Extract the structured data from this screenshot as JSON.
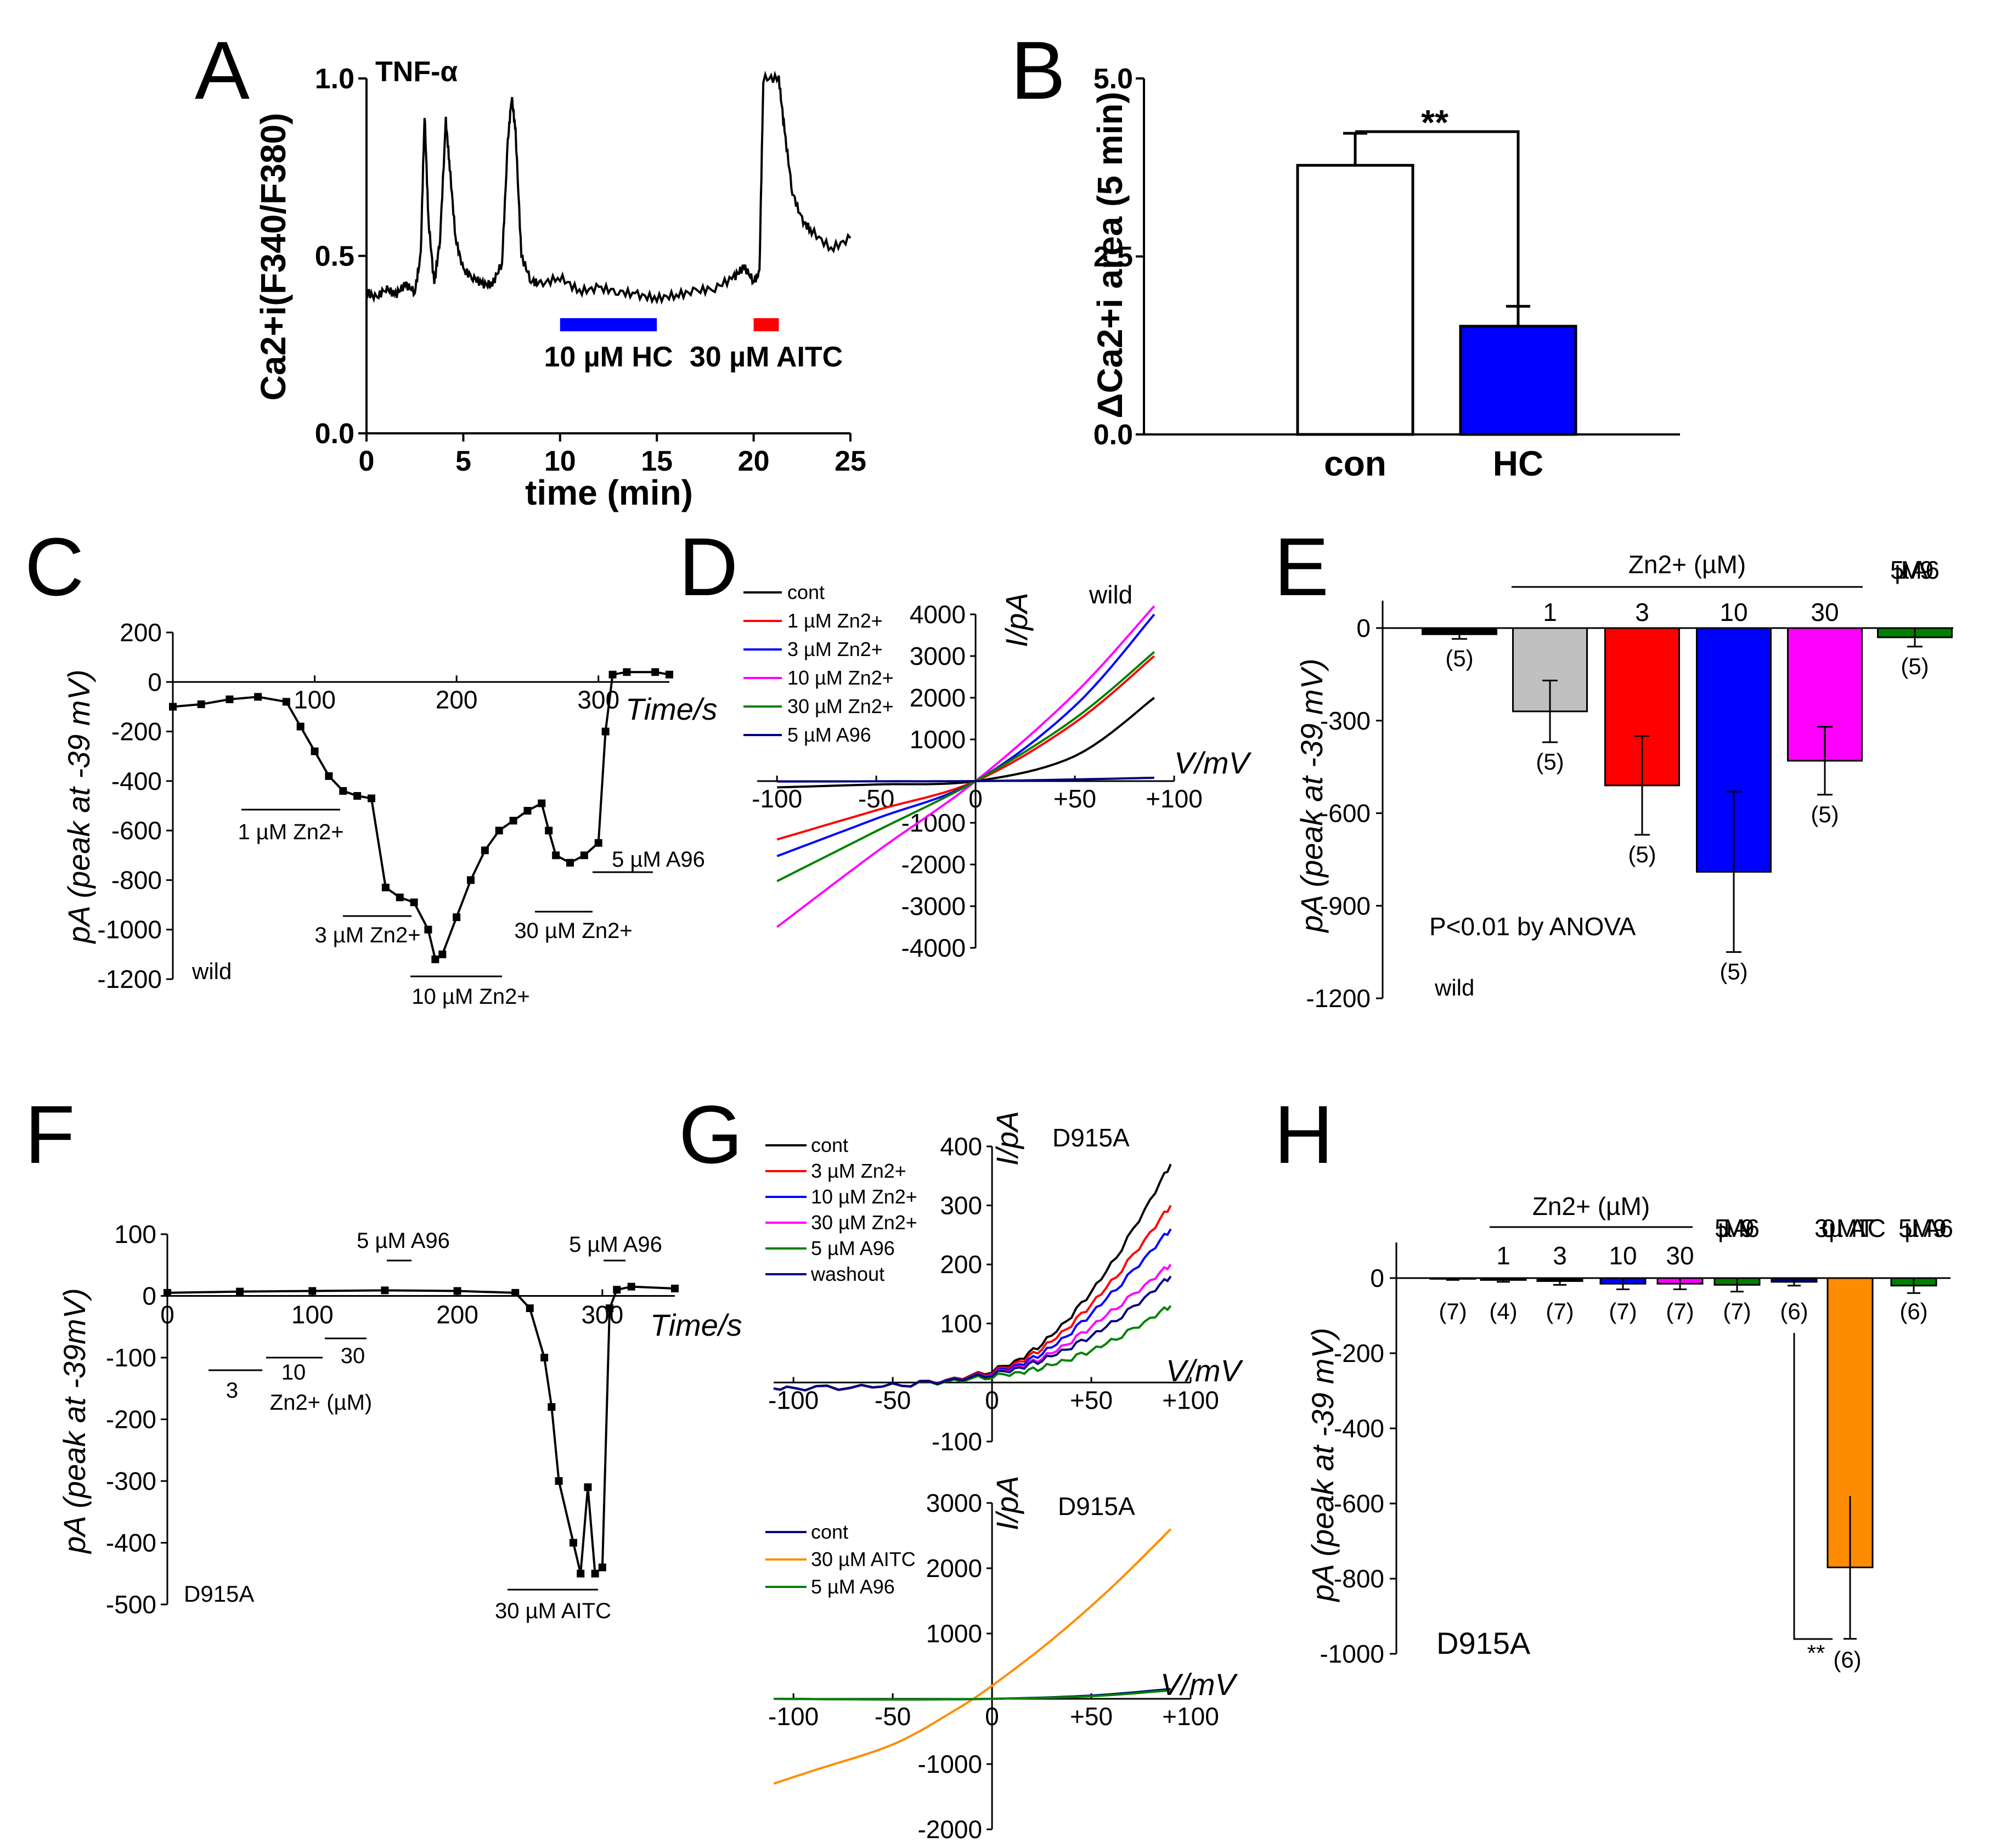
{
  "chart_data": [
    {
      "panel": "A",
      "type": "line",
      "annotation_top": "TNF-α",
      "xlabel": "time (min)",
      "ylabel": "Ca2+i(F340/F380)",
      "ylim": [
        0.0,
        1.0
      ],
      "xlim": [
        0,
        25
      ],
      "x_ticks": [
        "0",
        "5",
        "10",
        "15",
        "20",
        "25"
      ],
      "y_ticks": [
        "0.0",
        "0.5",
        "1.0"
      ],
      "series": [
        {
          "x": [
            0,
            0.5,
            1,
            1.5,
            2,
            2.5,
            2.8,
            3.0,
            3.2,
            3.5,
            3.8,
            4.1,
            4.3,
            4.6,
            5,
            5.5,
            6,
            6.5,
            7,
            7.3,
            7.5,
            7.7,
            8,
            8.5,
            9,
            10,
            11,
            12,
            13,
            14,
            15,
            16,
            17,
            18,
            19,
            19.5,
            20,
            20.3,
            20.5,
            21.3,
            21.6,
            22,
            22.5,
            23,
            24,
            25
          ],
          "y": [
            0.4,
            0.38,
            0.41,
            0.39,
            0.42,
            0.4,
            0.5,
            0.9,
            0.6,
            0.42,
            0.55,
            0.88,
            0.75,
            0.55,
            0.46,
            0.44,
            0.42,
            0.42,
            0.48,
            0.82,
            0.95,
            0.85,
            0.5,
            0.43,
            0.42,
            0.44,
            0.4,
            0.41,
            0.4,
            0.39,
            0.38,
            0.39,
            0.4,
            0.41,
            0.44,
            0.47,
            0.43,
            0.45,
            1.0,
            1.0,
            0.85,
            0.68,
            0.6,
            0.57,
            0.52,
            0.55
          ]
        }
      ],
      "bars": [
        {
          "label": "10 µM HC",
          "start": 10,
          "end": 15,
          "color": "#0000ff"
        },
        {
          "label": "30 µM AITC",
          "start": 20,
          "end": 21.3,
          "color": "#ff0000"
        }
      ]
    },
    {
      "panel": "B",
      "type": "bar",
      "categories": [
        "con",
        "HC"
      ],
      "values": [
        3.78,
        1.52
      ],
      "errors": [
        0.45,
        0.28
      ],
      "colors": [
        "#ffffff",
        "#0000ff"
      ],
      "ylabel": "ΔCa2+i area (5 min)",
      "ylim": [
        0.0,
        5.0
      ],
      "y_ticks": [
        "0.0",
        "2.5",
        "5.0"
      ],
      "significance": "**"
    },
    {
      "panel": "C",
      "type": "line",
      "xlabel": "Time/s",
      "ylabel": "pA (peak at -39 mV)",
      "xlim": [
        0,
        350
      ],
      "ylim": [
        -1200,
        200
      ],
      "x_ticks": [
        "100",
        "200",
        "300"
      ],
      "y_ticks": [
        "200",
        "0",
        "-200",
        "-400",
        "-600",
        "-800",
        "-1000",
        "-1200"
      ],
      "series": [
        {
          "x": [
            0,
            20,
            40,
            60,
            80,
            90,
            100,
            110,
            120,
            130,
            140,
            150,
            160,
            170,
            180,
            185,
            190,
            200,
            210,
            220,
            230,
            240,
            250,
            260,
            265,
            270,
            280,
            290,
            300,
            305,
            310,
            320,
            340,
            350
          ],
          "y": [
            -100,
            -90,
            -70,
            -60,
            -80,
            -180,
            -280,
            -380,
            -440,
            -460,
            -470,
            -830,
            -870,
            -890,
            -1000,
            -1120,
            -1100,
            -950,
            -800,
            -680,
            -600,
            -560,
            -520,
            -490,
            -600,
            -700,
            -730,
            -700,
            -650,
            -200,
            30,
            40,
            40,
            30
          ]
        }
      ],
      "annotations": [
        "1 µM Zn2+",
        "3 µM Zn2+",
        "10 µM Zn2+",
        "30 µM Zn2+",
        "5 µM A96",
        "wild"
      ]
    },
    {
      "panel": "D",
      "type": "line",
      "annotation": "wild",
      "xlabel": "V/mV",
      "ylabel": "I/pA",
      "xlim": [
        -110,
        100
      ],
      "ylim": [
        -4000,
        4000
      ],
      "x_ticks": [
        "-100",
        "-50",
        "0",
        "+50",
        "+100"
      ],
      "y_ticks": [
        "4000",
        "3000",
        "2000",
        "1000",
        "-1000",
        "-2000",
        "-3000",
        "-4000"
      ],
      "series": [
        {
          "name": "cont",
          "color": "#000000",
          "x": [
            -100,
            -50,
            0,
            50,
            90
          ],
          "y": [
            -150,
            -80,
            0,
            600,
            2000
          ]
        },
        {
          "name": "1 µM Zn2+",
          "color": "#ff0000",
          "x": [
            -100,
            -50,
            0,
            50,
            90
          ],
          "y": [
            -1400,
            -700,
            0,
            1400,
            3000
          ]
        },
        {
          "name": "3 µM Zn2+",
          "color": "#0000ff",
          "x": [
            -100,
            -50,
            0,
            50,
            90
          ],
          "y": [
            -1800,
            -900,
            0,
            1800,
            4000
          ]
        },
        {
          "name": "10 µM Zn2+",
          "color": "#ff00ff",
          "x": [
            -100,
            -50,
            0,
            50,
            90
          ],
          "y": [
            -3500,
            -1700,
            0,
            2100,
            4200
          ]
        },
        {
          "name": "30 µM Zn2+",
          "color": "#008000",
          "x": [
            -100,
            -50,
            0,
            50,
            90
          ],
          "y": [
            -2400,
            -1200,
            0,
            1500,
            3100
          ]
        },
        {
          "name": "5 µM A96",
          "color": "#000080",
          "x": [
            -100,
            -50,
            0,
            50,
            90
          ],
          "y": [
            -10,
            -5,
            0,
            40,
            80
          ]
        }
      ]
    },
    {
      "panel": "E",
      "type": "bar",
      "ylabel": "pA (peak at -39 mV)",
      "ylim": [
        -1200,
        0
      ],
      "y_ticks": [
        "0",
        "-300",
        "-600",
        "-900",
        "-1200"
      ],
      "group_label": "Zn2+ (µM)",
      "categories": [
        "",
        "1",
        "3",
        "10",
        "30",
        "5 µM A96"
      ],
      "values": [
        -20,
        -270,
        -510,
        -790,
        -430,
        -30
      ],
      "errors": [
        15,
        100,
        160,
        260,
        110,
        30
      ],
      "n": [
        "(5)",
        "(5)",
        "(5)",
        "(5)",
        "(5)",
        "(5)"
      ],
      "colors": [
        "#000000",
        "#c0c0c0",
        "#ff0000",
        "#0000ff",
        "#ff00ff",
        "#008000"
      ],
      "annotations": [
        "P<0.01 by ANOVA",
        "wild"
      ]
    },
    {
      "panel": "F",
      "type": "line",
      "xlabel": "Time/s",
      "ylabel": "pA (peak at -39mV)",
      "xlim": [
        0,
        350
      ],
      "ylim": [
        -500,
        100
      ],
      "x_ticks": [
        "0",
        "100",
        "200",
        "300"
      ],
      "y_ticks": [
        "100",
        "0",
        "-100",
        "-200",
        "-300",
        "-400",
        "-500"
      ],
      "series": [
        {
          "x": [
            0,
            50,
            100,
            150,
            200,
            240,
            250,
            260,
            265,
            270,
            280,
            285,
            290,
            295,
            300,
            305,
            310,
            320,
            350
          ],
          "y": [
            5,
            7,
            8,
            9,
            8,
            5,
            -20,
            -100,
            -180,
            -300,
            -400,
            -450,
            -310,
            -450,
            -440,
            -20,
            10,
            15,
            12
          ]
        }
      ],
      "annotations": [
        "5 µM A96",
        "5 µM A96",
        "3",
        "10",
        "30",
        "Zn2+ (µM)",
        "30 µM AITC",
        "D915A"
      ]
    },
    {
      "panel": "G",
      "type": "line",
      "annotation": "D915A",
      "xlabel": "V/mV",
      "ylabel": "I/pA",
      "xlim": [
        -110,
        100
      ],
      "ylim": [
        -100,
        400
      ],
      "x_ticks": [
        "-100",
        "-50",
        "0",
        "+50",
        "+100"
      ],
      "y_ticks": [
        "400",
        "300",
        "200",
        "100",
        "-100"
      ],
      "series": [
        {
          "name": "cont",
          "color": "#000000",
          "x": [
            -110,
            -50,
            0,
            30,
            60,
            90
          ],
          "y": [
            -10,
            -5,
            20,
            80,
            200,
            370
          ]
        },
        {
          "name": "3 µM Zn2+",
          "color": "#ff0000",
          "x": [
            -110,
            -50,
            0,
            30,
            60,
            90
          ],
          "y": [
            -10,
            -5,
            18,
            70,
            170,
            300
          ]
        },
        {
          "name": "10 µM Zn2+",
          "color": "#0000ff",
          "x": [
            -110,
            -50,
            0,
            30,
            60,
            90
          ],
          "y": [
            -10,
            -5,
            16,
            60,
            150,
            260
          ]
        },
        {
          "name": "30 µM Zn2+",
          "color": "#ff00ff",
          "x": [
            -110,
            -50,
            0,
            30,
            60,
            90
          ],
          "y": [
            -10,
            -5,
            15,
            50,
            120,
            200
          ]
        },
        {
          "name": "5 µM A96",
          "color": "#008000",
          "x": [
            -110,
            -50,
            0,
            30,
            60,
            90
          ],
          "y": [
            -10,
            -5,
            10,
            30,
            70,
            130
          ]
        },
        {
          "name": "washout",
          "color": "#000080",
          "x": [
            -110,
            -50,
            0,
            30,
            60,
            90
          ],
          "y": [
            -10,
            -5,
            14,
            45,
            100,
            180
          ]
        }
      ]
    },
    {
      "panel": "G-lower",
      "type": "line",
      "annotation": "D915A",
      "xlabel": "V/mV",
      "ylabel": "I/pA",
      "xlim": [
        -110,
        100
      ],
      "ylim": [
        -2000,
        3000
      ],
      "x_ticks": [
        "-100",
        "-50",
        "0",
        "+50",
        "+100"
      ],
      "y_ticks": [
        "3000",
        "2000",
        "1000",
        "-1000",
        "-2000"
      ],
      "series": [
        {
          "name": "cont",
          "color": "#000080",
          "x": [
            -110,
            -50,
            0,
            50,
            90
          ],
          "y": [
            0,
            -10,
            0,
            50,
            150
          ]
        },
        {
          "name": "30 µM AITC",
          "color": "#ff8c00",
          "x": [
            -110,
            -90,
            -50,
            -20,
            0,
            30,
            60,
            90
          ],
          "y": [
            -1300,
            -1100,
            -700,
            -200,
            200,
            900,
            1700,
            2600
          ]
        },
        {
          "name": "5 µM A96",
          "color": "#008000",
          "x": [
            -110,
            -50,
            0,
            50,
            90
          ],
          "y": [
            0,
            -10,
            0,
            40,
            130
          ]
        }
      ]
    },
    {
      "panel": "H",
      "type": "bar",
      "ylabel": "pA (peak at -39 mV)",
      "ylim": [
        -1000,
        0
      ],
      "y_ticks": [
        "0",
        "-200",
        "-400",
        "-600",
        "-800",
        "-1000"
      ],
      "group_label": "Zn2+ (µM)",
      "categories": [
        "",
        "1",
        "3",
        "10",
        "30",
        "5 µM A96",
        "",
        "30 µM AITC",
        "5 µM A96"
      ],
      "values": [
        -2,
        -5,
        -8,
        -15,
        -15,
        -18,
        -10,
        -770,
        -20
      ],
      "errors": [
        3,
        5,
        10,
        15,
        15,
        18,
        10,
        190,
        20
      ],
      "n": [
        "(7)",
        "(4)",
        "(7)",
        "(7)",
        "(7)",
        "(7)",
        "(6)",
        "(6)",
        "(6)"
      ],
      "colors": [
        "#000000",
        "#000000",
        "#000000",
        "#0000ff",
        "#ff00ff",
        "#008000",
        "#000080",
        "#ff8c00",
        "#008000"
      ],
      "significance": "**",
      "annotations": [
        "D915A"
      ]
    }
  ],
  "labels": {
    "A": "A",
    "B": "B",
    "C": "C",
    "D": "D",
    "E": "E",
    "F": "F",
    "G": "G",
    "H": "H"
  }
}
